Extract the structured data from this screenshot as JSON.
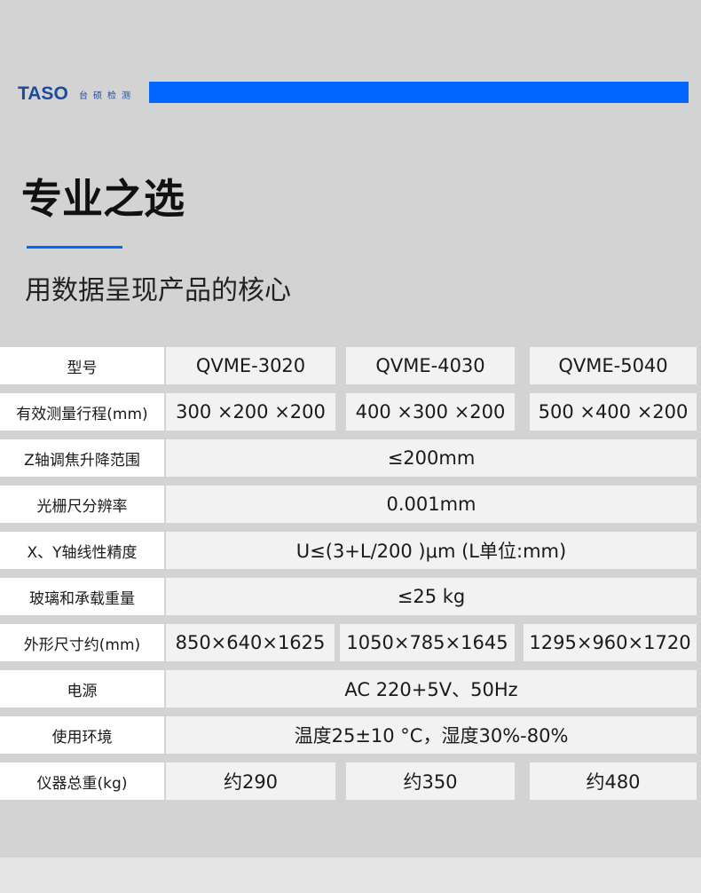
{
  "header": {
    "logo_text": "TASO",
    "logo_cn": "台硕检测",
    "brand_color": "#0066ff"
  },
  "title": "专业之选",
  "subtitle": "用数据呈现产品的核心",
  "rows": [
    {
      "label": "型号",
      "values": [
        "QVME-3020",
        "QVME-4030",
        "QVME-5040"
      ]
    },
    {
      "label": "有效测量行程(mm)",
      "values": [
        "300 ×200 ×200",
        "400 ×300 ×200",
        "500 ×400 ×200"
      ]
    },
    {
      "label": "Z轴调焦升降范围",
      "values": [
        "≤200mm"
      ]
    },
    {
      "label": "光栅尺分辨率",
      "values": [
        "0.001mm"
      ]
    },
    {
      "label": "X、Y轴线性精度",
      "values": [
        "U≤(3+L/200 )μm (L单位:mm)"
      ]
    },
    {
      "label": "玻璃和承载重量",
      "values": [
        "≤25 kg"
      ]
    },
    {
      "label": "外形尺寸约(mm)",
      "values": [
        "850×640×1625",
        "1050×785×1645",
        "1295×960×1720"
      ]
    },
    {
      "label": "电源",
      "values": [
        "AC 220+5V、50Hz"
      ]
    },
    {
      "label": "使用环境",
      "values": [
        "温度25±10 °C，湿度30%-80%"
      ]
    },
    {
      "label": "仪器总重(kg)",
      "values": [
        "约290",
        "约350",
        "约480"
      ]
    }
  ]
}
